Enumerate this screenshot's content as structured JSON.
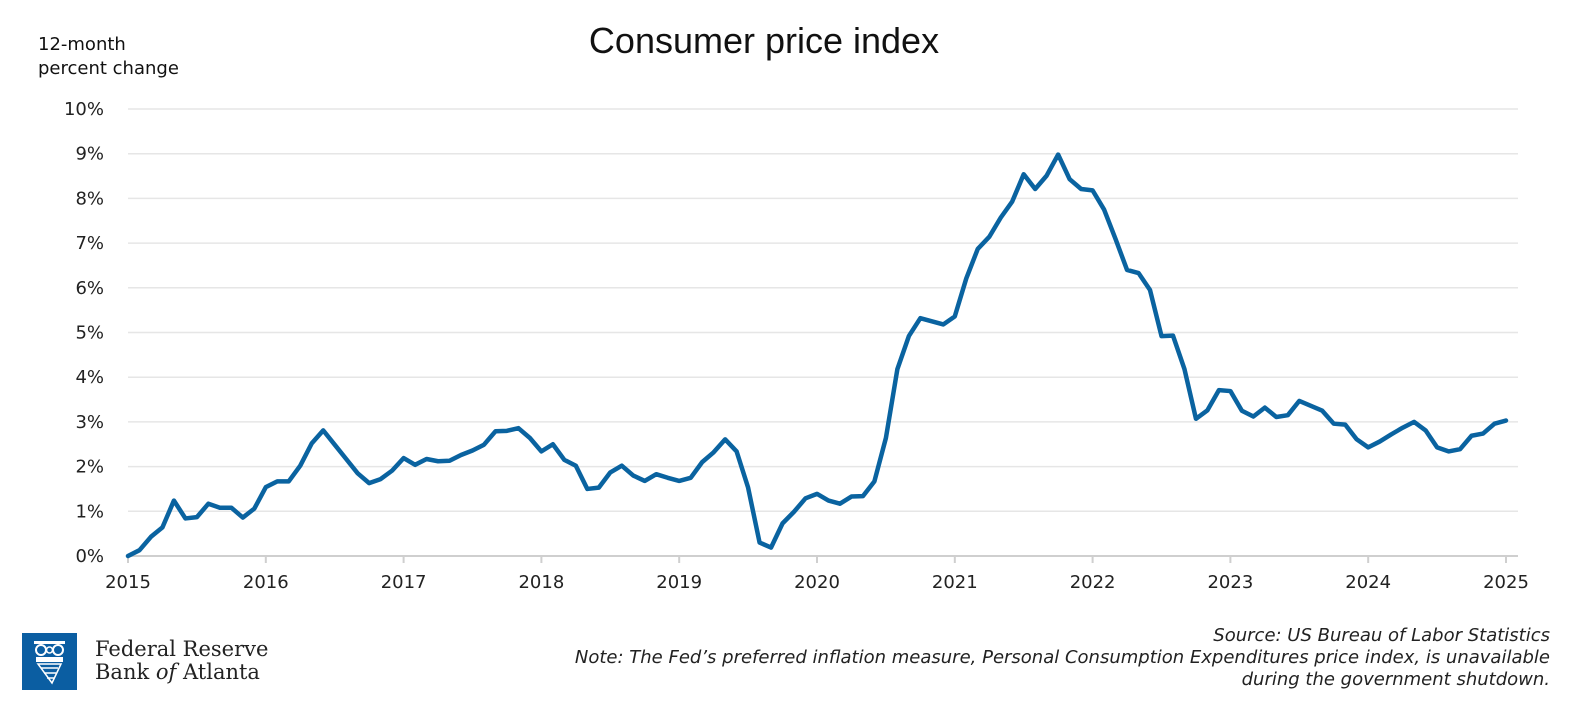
{
  "chart_data": {
    "type": "line",
    "title": "Consumer price index",
    "ylabel": "12-month percent change",
    "xlabel": "",
    "xlim": [
      2015,
      2025
    ],
    "ylim": [
      0,
      10
    ],
    "grid": "horizontal",
    "x_ticks": [
      "2015",
      "2016",
      "2017",
      "2018",
      "2019",
      "2020",
      "2021",
      "2022",
      "2023",
      "2024",
      "2025"
    ],
    "y_ticks": [
      "0%",
      "1%",
      "2%",
      "3%",
      "4%",
      "5%",
      "6%",
      "7%",
      "8%",
      "9%",
      "10%"
    ],
    "line_color": "#0a63a0",
    "series": [
      {
        "x_start": 2015,
        "x_step_months": 1,
        "values": [
          0.0,
          0.13,
          0.43,
          0.64,
          1.24,
          0.84,
          0.87,
          1.17,
          1.08,
          1.08,
          0.86,
          1.06,
          1.54,
          1.67,
          1.67,
          2.02,
          2.52,
          2.81,
          2.49,
          2.17,
          1.85,
          1.63,
          1.72,
          1.91,
          2.19,
          2.04,
          2.17,
          2.12,
          2.13,
          2.26,
          2.36,
          2.49,
          2.79,
          2.8,
          2.86,
          2.64,
          2.34,
          2.5,
          2.15,
          2.02,
          1.5,
          1.53,
          1.87,
          2.02,
          1.8,
          1.68,
          1.83,
          1.75,
          1.68,
          1.75,
          2.1,
          2.32,
          2.61,
          2.34,
          1.53,
          0.3,
          0.19,
          0.73,
          0.99,
          1.29,
          1.39,
          1.24,
          1.17,
          1.33,
          1.34,
          1.67,
          2.64,
          4.18,
          4.92,
          5.32,
          5.25,
          5.18,
          5.36,
          6.21,
          6.87,
          7.14,
          7.57,
          7.93,
          8.54,
          8.21,
          8.51,
          8.98,
          8.43,
          8.21,
          8.18,
          7.75,
          7.09,
          6.4,
          6.33,
          5.95,
          4.92,
          4.93,
          4.18,
          3.07,
          3.26,
          3.71,
          3.69,
          3.25,
          3.12,
          3.32,
          3.11,
          3.15,
          3.47,
          3.36,
          3.25,
          2.96,
          2.94,
          2.61,
          2.43,
          2.56,
          2.72,
          2.87,
          3.0,
          2.81,
          2.43,
          2.34,
          2.39,
          2.69,
          2.74,
          2.96,
          3.03
        ]
      }
    ]
  },
  "logo": {
    "line1": "Federal Reserve",
    "line2_a": "Bank ",
    "line2_b": "of",
    "line2_c": " Atlanta",
    "color": "#0b5ea2"
  },
  "source": "Source: US Bureau of Labor Statistics",
  "note_line1": "Note: The Fed’s preferred inflation measure, Personal Consumption Expenditures price index, is unavailable",
  "note_line2": "during the government shutdown."
}
